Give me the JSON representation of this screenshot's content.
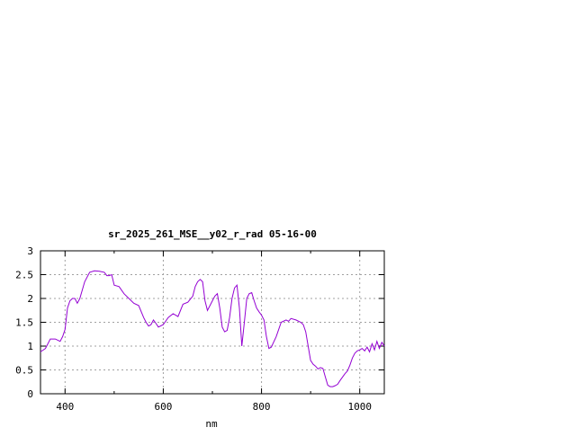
{
  "chart_data": {
    "type": "line",
    "title": "sr_2025_261_MSE__y02_r_rad 05-16-00",
    "xlabel": "nm",
    "ylabel": "",
    "xlim": [
      350,
      1050
    ],
    "ylim": [
      0,
      3
    ],
    "x_ticks": [
      400,
      600,
      800,
      1000
    ],
    "x_tick_labels": [
      "400",
      "600",
      "800",
      "1000"
    ],
    "y_ticks": [
      0,
      0.5,
      1,
      1.5,
      2,
      2.5,
      3
    ],
    "y_tick_labels": [
      "0",
      "0.5",
      "1",
      "1.5",
      "2",
      "2.5",
      "3"
    ],
    "grid": true,
    "line_color": "#9400d3",
    "series": [
      {
        "x": [
          350,
          360,
          370,
          380,
          390,
          395,
          400,
          405,
          410,
          415,
          420,
          425,
          430,
          440,
          450,
          460,
          470,
          480,
          485,
          490,
          495,
          500,
          510,
          520,
          530,
          540,
          550,
          560,
          565,
          570,
          575,
          580,
          585,
          590,
          600,
          610,
          620,
          630,
          640,
          650,
          660,
          665,
          670,
          675,
          680,
          685,
          690,
          695,
          700,
          705,
          710,
          715,
          720,
          725,
          730,
          735,
          740,
          745,
          750,
          755,
          760,
          765,
          770,
          775,
          780,
          785,
          790,
          795,
          800,
          805,
          810,
          815,
          820,
          830,
          840,
          850,
          855,
          860,
          870,
          880,
          885,
          890,
          895,
          900,
          905,
          910,
          915,
          920,
          925,
          930,
          935,
          940,
          945,
          950,
          955,
          960,
          965,
          970,
          975,
          980,
          985,
          990,
          995,
          1000,
          1005,
          1010,
          1015,
          1020,
          1025,
          1030,
          1035,
          1040,
          1045,
          1050
        ],
        "y": [
          0.88,
          0.95,
          1.15,
          1.15,
          1.1,
          1.2,
          1.35,
          1.8,
          1.95,
          2.0,
          2.0,
          1.9,
          2.0,
          2.35,
          2.55,
          2.58,
          2.57,
          2.55,
          2.48,
          2.48,
          2.5,
          2.28,
          2.25,
          2.1,
          2.0,
          1.9,
          1.85,
          1.6,
          1.5,
          1.42,
          1.45,
          1.55,
          1.48,
          1.4,
          1.45,
          1.6,
          1.68,
          1.62,
          1.88,
          1.92,
          2.05,
          2.25,
          2.35,
          2.4,
          2.35,
          1.95,
          1.75,
          1.85,
          1.95,
          2.05,
          2.1,
          1.8,
          1.4,
          1.3,
          1.33,
          1.6,
          2.0,
          2.22,
          2.28,
          1.8,
          1.0,
          1.5,
          2.0,
          2.1,
          2.12,
          1.95,
          1.8,
          1.72,
          1.65,
          1.55,
          1.2,
          0.95,
          0.98,
          1.2,
          1.5,
          1.55,
          1.52,
          1.58,
          1.55,
          1.5,
          1.45,
          1.3,
          1.0,
          0.7,
          0.62,
          0.58,
          0.52,
          0.55,
          0.53,
          0.35,
          0.18,
          0.15,
          0.15,
          0.17,
          0.2,
          0.28,
          0.35,
          0.42,
          0.48,
          0.6,
          0.75,
          0.85,
          0.9,
          0.92,
          0.95,
          0.9,
          0.98,
          0.88,
          1.05,
          0.92,
          1.1,
          0.95,
          1.08,
          1.0
        ]
      }
    ]
  }
}
